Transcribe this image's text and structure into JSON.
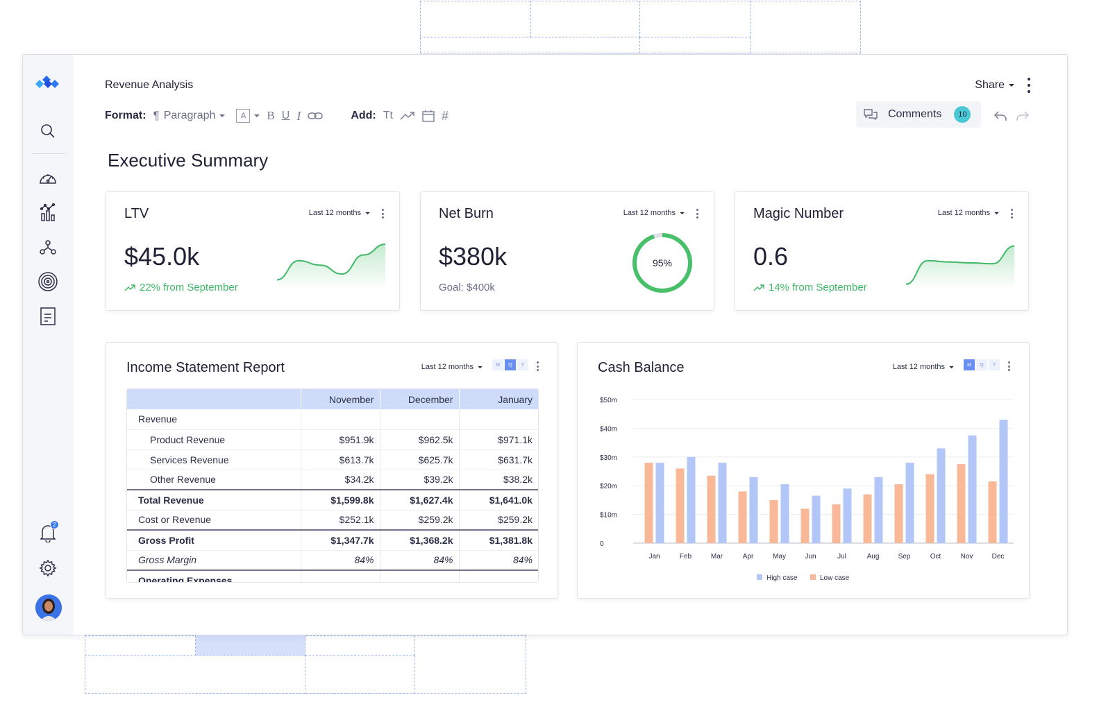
{
  "document": {
    "title": "Revenue Analysis",
    "share_label": "Share",
    "heading": "Executive Summary"
  },
  "toolbar": {
    "format_label": "Format:",
    "paragraph_label": "Paragraph",
    "font_box": "A",
    "add_label": "Add:",
    "text_tool": "Tt"
  },
  "comments": {
    "label": "Comments",
    "count": "10"
  },
  "sidebar": {
    "notification_count": "2"
  },
  "kpis": [
    {
      "title": "LTV",
      "period": "Last 12 months",
      "value": "$45.0k",
      "change": "22% from September",
      "sparkline": [
        0.12,
        0.55,
        0.45,
        0.25,
        0.68,
        0.92
      ]
    },
    {
      "title": "Net Burn",
      "period": "Last 12 months",
      "value": "$380k",
      "goal": "Goal: $400k",
      "progress_label": "95%",
      "progress": 0.95
    },
    {
      "title": "Magic Number",
      "period": "Last 12 months",
      "value": "0.6",
      "change": "14% from September",
      "sparkline": [
        0.02,
        0.55,
        0.52,
        0.5,
        0.48,
        0.88
      ]
    }
  ],
  "income": {
    "title": "Income Statement Report",
    "period": "Last 12 months",
    "toggles": [
      "M",
      "Q",
      "Y"
    ],
    "active_toggle": "Q",
    "columns": [
      "",
      "November",
      "December",
      "January"
    ],
    "rows": [
      {
        "label": "Revenue",
        "values": [
          "",
          "",
          ""
        ],
        "style": "head"
      },
      {
        "label": "Product Revenue",
        "values": [
          "$951.9k",
          "$962.5k",
          "$971.1k"
        ],
        "style": "sub"
      },
      {
        "label": "Services Revenue",
        "values": [
          "$613.7k",
          "$625.7k",
          "$631.7k"
        ],
        "style": "sub"
      },
      {
        "label": "Other Revenue",
        "values": [
          "$34.2k",
          "$39.2k",
          "$38.2k"
        ],
        "style": "sub"
      },
      {
        "label": "Total Revenue",
        "values": [
          "$1,599.8k",
          "$1,627.4k",
          "$1,641.0k"
        ],
        "style": "bold topline"
      },
      {
        "label": "Cost or Revenue",
        "values": [
          "$252.1k",
          "$259.2k",
          "$259.2k"
        ],
        "style": ""
      },
      {
        "label": "Gross Profit",
        "values": [
          "$1,347.7k",
          "$1,368.2k",
          "$1,381.8k"
        ],
        "style": "bold topline"
      },
      {
        "label": "Gross Margin",
        "values": [
          "84%",
          "84%",
          "84%"
        ],
        "style": "ital"
      },
      {
        "label": "Operating Expenses",
        "values": [
          "",
          "",
          ""
        ],
        "style": "bold topline"
      }
    ]
  },
  "cash": {
    "title": "Cash Balance",
    "period": "Last 12 months",
    "toggles": [
      "M",
      "Q",
      "Y"
    ],
    "active_toggle": "M"
  },
  "chart_data": {
    "type": "bar",
    "title": "Cash Balance",
    "categories": [
      "Jan",
      "Feb",
      "Mar",
      "Apr",
      "May",
      "Jun",
      "Jul",
      "Aug",
      "Sep",
      "Oct",
      "Nov",
      "Dec"
    ],
    "series": [
      {
        "name": "Low case",
        "color": "#f9b897",
        "values": [
          28,
          26,
          23.5,
          18,
          15,
          12,
          13.5,
          17,
          20.5,
          24,
          27.5,
          21.5
        ]
      },
      {
        "name": "High case",
        "color": "#b3c6f8",
        "values": [
          28,
          30,
          28,
          23,
          20.5,
          16.5,
          19,
          23,
          28,
          33,
          37.5,
          43
        ]
      }
    ],
    "yticks": [
      "0",
      "$10m",
      "$20m",
      "$30m",
      "$40m",
      "$50m"
    ],
    "ylim": [
      0,
      50
    ],
    "legend_position": "bottom",
    "grid": true
  }
}
